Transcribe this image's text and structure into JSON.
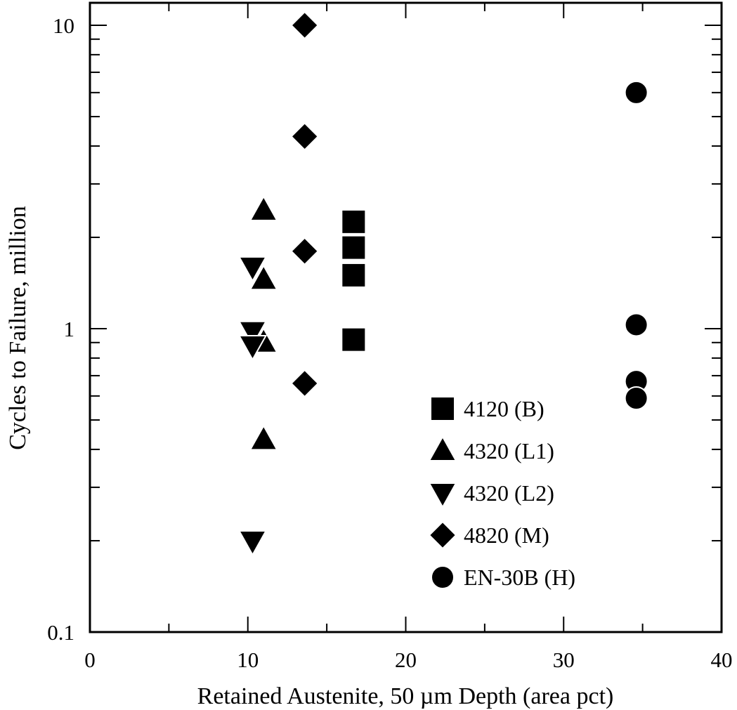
{
  "chart_data": {
    "type": "scatter",
    "title": "",
    "xlabel": "Retained Austenite, 50 µm Depth (area pct)",
    "ylabel": "Cycles to Failure, million",
    "xlim": [
      0,
      40
    ],
    "ylim": [
      0.1,
      10
    ],
    "yscale": "log",
    "xticks": [
      0,
      10,
      20,
      30,
      40
    ],
    "xtick_labels": [
      "0",
      "10",
      "20",
      "30",
      "40"
    ],
    "yticks": [
      0.1,
      1,
      10
    ],
    "ytick_labels": [
      "0.1",
      "1",
      "10"
    ],
    "grid": false,
    "legend_position": "bottom-right",
    "series": [
      {
        "name": "4120 (B)",
        "marker": "square",
        "color": "#000000",
        "points": [
          [
            16.7,
            2.25
          ],
          [
            16.7,
            1.85
          ],
          [
            16.7,
            1.5
          ],
          [
            16.7,
            0.92
          ]
        ]
      },
      {
        "name": "4320 (L1)",
        "marker": "triangle-up",
        "color": "#000000",
        "points": [
          [
            11.0,
            2.45
          ],
          [
            11.0,
            1.45
          ],
          [
            11.0,
            0.9
          ],
          [
            11.0,
            0.43
          ]
        ]
      },
      {
        "name": "4320 (L2)",
        "marker": "triangle-down",
        "color": "#000000",
        "points": [
          [
            10.3,
            1.6
          ],
          [
            10.3,
            0.98
          ],
          [
            10.3,
            0.88
          ],
          [
            10.3,
            0.2
          ]
        ]
      },
      {
        "name": "4820 (M)",
        "marker": "diamond",
        "color": "#000000",
        "points": [
          [
            13.6,
            10.0
          ],
          [
            13.6,
            4.3
          ],
          [
            13.6,
            1.8
          ],
          [
            13.6,
            0.66
          ]
        ]
      },
      {
        "name": "EN-30B (H)",
        "marker": "circle",
        "color": "#000000",
        "points": [
          [
            34.6,
            6.0
          ],
          [
            34.6,
            1.03
          ],
          [
            34.6,
            0.67
          ],
          [
            34.6,
            0.59
          ]
        ]
      }
    ]
  }
}
